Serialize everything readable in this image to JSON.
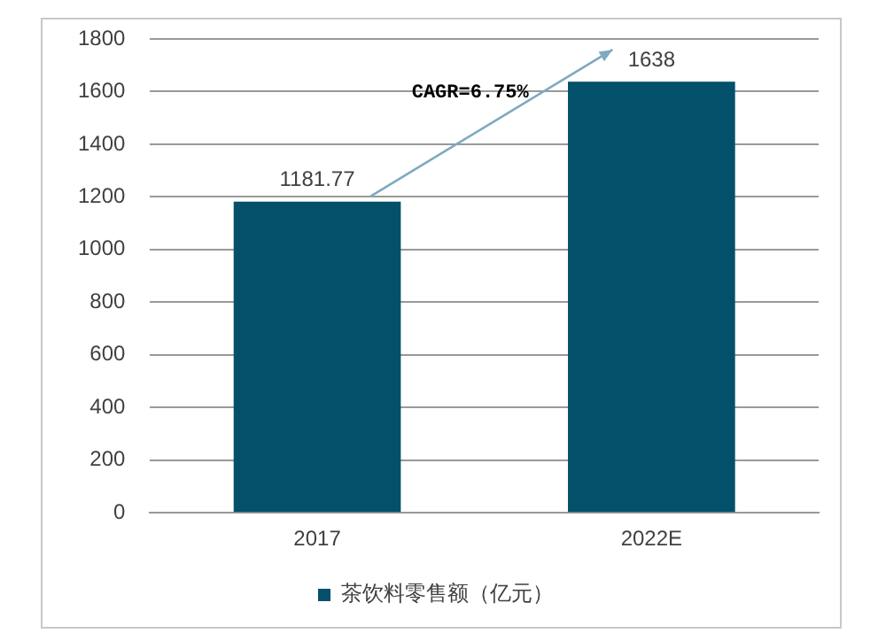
{
  "chart_data": {
    "type": "bar",
    "categories": [
      "2017",
      "2022E"
    ],
    "series": [
      {
        "name": "茶饮料零售额（亿元）",
        "color": "#03506a",
        "values": [
          1181.77,
          1638
        ]
      }
    ],
    "ylim": [
      0,
      1800
    ],
    "yticks": [
      0,
      200,
      400,
      600,
      800,
      1000,
      1200,
      1400,
      1600,
      1800
    ],
    "grid": "y",
    "legend": "bottom",
    "data_labels": true,
    "annotations": [
      "CAGR=6.75%"
    ]
  }
}
